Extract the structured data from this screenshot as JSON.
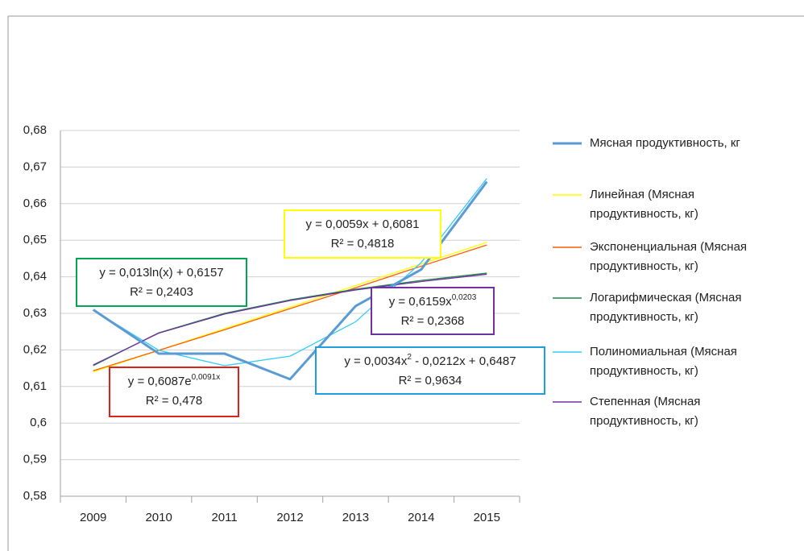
{
  "chart_data": {
    "type": "line",
    "categories": [
      "2009",
      "2010",
      "2011",
      "2012",
      "2013",
      "2014",
      "2015"
    ],
    "series": [
      {
        "name": "Мясная продуктивность, кг",
        "color": "#5b9bd5",
        "values": [
          0.631,
          0.619,
          0.619,
          0.612,
          0.632,
          0.642,
          0.666
        ]
      },
      {
        "name": "Линейная (Мясная продуктивность, кг)",
        "color": "#ffff00",
        "values": [
          0.614,
          0.6199,
          0.6258,
          0.6317,
          0.6376,
          0.6435,
          0.6494
        ]
      },
      {
        "name": "Экспоненциальная (Мясная продуктивность, кг)",
        "color": "#ff5a00",
        "values": [
          0.6143,
          0.6199,
          0.6255,
          0.6313,
          0.637,
          0.6429,
          0.6487
        ]
      },
      {
        "name": "Логарифмическая (Мясная продуктивность, кг)",
        "color": "#1e8a4a",
        "values": [
          0.6157,
          0.6247,
          0.63,
          0.6337,
          0.6366,
          0.639,
          0.641
        ]
      },
      {
        "name": "Полиномиальная (Мясная продуктивность, кг)",
        "color": "#33ccff",
        "values": [
          0.6309,
          0.6199,
          0.6157,
          0.6183,
          0.6277,
          0.6439,
          0.6669
        ]
      },
      {
        "name": "Степенная (Мясная продуктивность, кг)",
        "color": "#7030a0",
        "values": [
          0.6159,
          0.6246,
          0.6298,
          0.6335,
          0.6364,
          0.6387,
          0.6407
        ]
      }
    ],
    "ylim": [
      0.58,
      0.68
    ],
    "yticks": [
      {
        "value": 0.58,
        "label": "0,58"
      },
      {
        "value": 0.59,
        "label": "0,59"
      },
      {
        "value": 0.6,
        "label": "0,6"
      },
      {
        "value": 0.61,
        "label": "0,61"
      },
      {
        "value": 0.62,
        "label": "0,62"
      },
      {
        "value": 0.63,
        "label": "0,63"
      },
      {
        "value": 0.64,
        "label": "0,64"
      },
      {
        "value": 0.65,
        "label": "0,65"
      },
      {
        "value": 0.66,
        "label": "0,66"
      },
      {
        "value": 0.67,
        "label": "0,67"
      },
      {
        "value": 0.68,
        "label": "0,68"
      }
    ],
    "grid": true,
    "legend": "right",
    "annotations": [
      {
        "color": "#00a651",
        "equation": [
          "y = 0,013ln(x) + 0,6157"
        ],
        "r2": "R² = 0,2403"
      },
      {
        "color": "#e0201b",
        "equation": [
          "y = 0,6087e",
          "0,0091x"
        ],
        "r2": "R² = 0,478"
      },
      {
        "color": "#ffff00",
        "equation": [
          "y = 0,0059x + 0,6081"
        ],
        "r2": "R² = 0,4818"
      },
      {
        "color": "#7030a0",
        "equation": [
          "y = 0,6159x",
          "0,0203"
        ],
        "r2": "R² = 0,2368"
      },
      {
        "color": "#1ea0e0",
        "equation": [
          "y = 0,0034x",
          "2",
          " - 0,0212x + 0,6487"
        ],
        "r2": "R² = 0,9634"
      }
    ]
  }
}
